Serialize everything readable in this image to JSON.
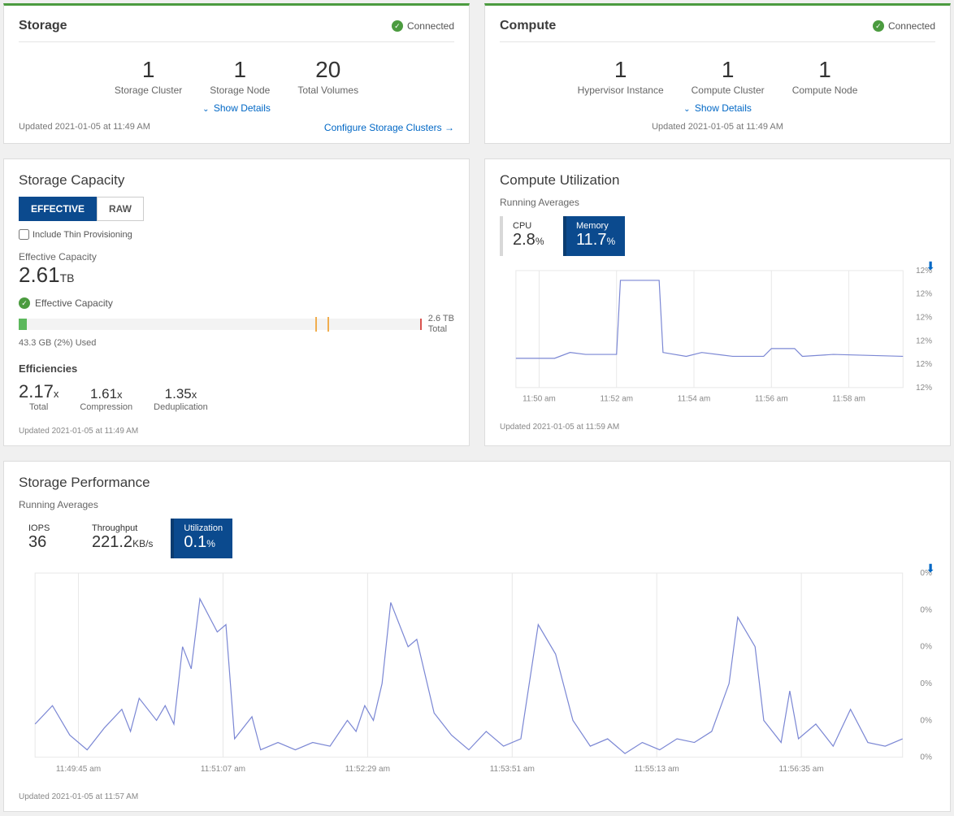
{
  "storage_card": {
    "title": "Storage",
    "status": "Connected",
    "metrics": [
      {
        "value": "1",
        "label": "Storage Cluster"
      },
      {
        "value": "1",
        "label": "Storage Node"
      },
      {
        "value": "20",
        "label": "Total Volumes"
      }
    ],
    "show_details": "Show Details",
    "updated": "Updated 2021-01-05 at 11:49 AM",
    "configure_link": "Configure Storage Clusters →"
  },
  "compute_card": {
    "title": "Compute",
    "status": "Connected",
    "metrics": [
      {
        "value": "1",
        "label": "Hypervisor Instance"
      },
      {
        "value": "1",
        "label": "Compute Cluster"
      },
      {
        "value": "1",
        "label": "Compute Node"
      }
    ],
    "show_details": "Show Details",
    "updated": "Updated 2021-01-05 at 11:49 AM"
  },
  "storage_capacity": {
    "title": "Storage Capacity",
    "tabs": {
      "effective": "EFFECTIVE",
      "raw": "RAW"
    },
    "thin_label": "Include Thin Provisioning",
    "capacity_label": "Effective Capacity",
    "capacity_value": "2.61",
    "capacity_unit": "TB",
    "bar": {
      "label": "Effective Capacity",
      "fill_pct": 2,
      "mark1_pct": 74,
      "mark2_pct": 77,
      "fill_color": "#5cb85c",
      "mark_color": "#f0ad4e",
      "end_color": "#d9534f",
      "bg_color": "#f3f3f3",
      "total_top": "2.6 TB",
      "total_bottom": "Total",
      "used_text": "43.3 GB (2%) Used"
    },
    "eff_title": "Efficiencies",
    "efficiencies": [
      {
        "value": "2.17",
        "label": "Total",
        "big": true
      },
      {
        "value": "1.61",
        "label": "Compression"
      },
      {
        "value": "1.35",
        "label": "Deduplication"
      }
    ],
    "updated": "Updated 2021-01-05 at 11:49 AM"
  },
  "compute_util": {
    "title": "Compute Utilization",
    "subheading": "Running Averages",
    "stats": {
      "cpu": {
        "name": "CPU",
        "value": "2.8",
        "unit": "%"
      },
      "memory": {
        "name": "Memory",
        "value": "11.7",
        "unit": "%"
      }
    },
    "chart": {
      "type": "line",
      "line_color": "#7b87d4",
      "grid_color": "#e8e8e8",
      "bg_color": "#ffffff",
      "x_ticks": [
        "11:50 am",
        "11:52 am",
        "11:54 am",
        "11:56 am",
        "11:58 am"
      ],
      "y_ticks": [
        "12%",
        "12%",
        "12%",
        "12%",
        "12%",
        "12%"
      ],
      "ylim": [
        11.5,
        12.1
      ],
      "points": [
        {
          "x": 0,
          "y": 11.65
        },
        {
          "x": 10,
          "y": 11.65
        },
        {
          "x": 14,
          "y": 11.68
        },
        {
          "x": 18,
          "y": 11.67
        },
        {
          "x": 26,
          "y": 11.67
        },
        {
          "x": 27,
          "y": 12.05
        },
        {
          "x": 37,
          "y": 12.05
        },
        {
          "x": 38,
          "y": 11.68
        },
        {
          "x": 44,
          "y": 11.66
        },
        {
          "x": 48,
          "y": 11.68
        },
        {
          "x": 56,
          "y": 11.66
        },
        {
          "x": 64,
          "y": 11.66
        },
        {
          "x": 66,
          "y": 11.7
        },
        {
          "x": 72,
          "y": 11.7
        },
        {
          "x": 74,
          "y": 11.66
        },
        {
          "x": 82,
          "y": 11.67
        },
        {
          "x": 100,
          "y": 11.66
        }
      ]
    },
    "updated": "Updated 2021-01-05 at 11:59 AM"
  },
  "storage_perf": {
    "title": "Storage Performance",
    "subheading": "Running Averages",
    "stats": {
      "iops": {
        "name": "IOPS",
        "value": "36"
      },
      "throughput": {
        "name": "Throughput",
        "value": "221.2",
        "unit": "KB/s"
      },
      "utilization": {
        "name": "Utilization",
        "value": "0.1",
        "unit": "%"
      }
    },
    "chart": {
      "type": "line",
      "line_color": "#7b87d4",
      "grid_color": "#e8e8e8",
      "bg_color": "#ffffff",
      "x_ticks": [
        "11:49:45 am",
        "11:51:07 am",
        "11:52:29 am",
        "11:53:51 am",
        "11:55:13 am",
        "11:56:35 am"
      ],
      "y_ticks": [
        "0%",
        "0%",
        "0%",
        "0%",
        "0%",
        "0%"
      ],
      "ylim": [
        0,
        0.5
      ],
      "points": [
        {
          "x": 0,
          "y": 0.09
        },
        {
          "x": 2,
          "y": 0.14
        },
        {
          "x": 4,
          "y": 0.06
        },
        {
          "x": 6,
          "y": 0.02
        },
        {
          "x": 8,
          "y": 0.08
        },
        {
          "x": 10,
          "y": 0.13
        },
        {
          "x": 11,
          "y": 0.07
        },
        {
          "x": 12,
          "y": 0.16
        },
        {
          "x": 14,
          "y": 0.1
        },
        {
          "x": 15,
          "y": 0.14
        },
        {
          "x": 16,
          "y": 0.09
        },
        {
          "x": 17,
          "y": 0.3
        },
        {
          "x": 18,
          "y": 0.24
        },
        {
          "x": 19,
          "y": 0.43
        },
        {
          "x": 21,
          "y": 0.34
        },
        {
          "x": 22,
          "y": 0.36
        },
        {
          "x": 23,
          "y": 0.05
        },
        {
          "x": 25,
          "y": 0.11
        },
        {
          "x": 26,
          "y": 0.02
        },
        {
          "x": 28,
          "y": 0.04
        },
        {
          "x": 30,
          "y": 0.02
        },
        {
          "x": 32,
          "y": 0.04
        },
        {
          "x": 34,
          "y": 0.03
        },
        {
          "x": 36,
          "y": 0.1
        },
        {
          "x": 37,
          "y": 0.07
        },
        {
          "x": 38,
          "y": 0.14
        },
        {
          "x": 39,
          "y": 0.1
        },
        {
          "x": 40,
          "y": 0.2
        },
        {
          "x": 41,
          "y": 0.42
        },
        {
          "x": 43,
          "y": 0.3
        },
        {
          "x": 44,
          "y": 0.32
        },
        {
          "x": 46,
          "y": 0.12
        },
        {
          "x": 48,
          "y": 0.06
        },
        {
          "x": 50,
          "y": 0.02
        },
        {
          "x": 52,
          "y": 0.07
        },
        {
          "x": 54,
          "y": 0.03
        },
        {
          "x": 56,
          "y": 0.05
        },
        {
          "x": 58,
          "y": 0.36
        },
        {
          "x": 60,
          "y": 0.28
        },
        {
          "x": 62,
          "y": 0.1
        },
        {
          "x": 64,
          "y": 0.03
        },
        {
          "x": 66,
          "y": 0.05
        },
        {
          "x": 68,
          "y": 0.01
        },
        {
          "x": 70,
          "y": 0.04
        },
        {
          "x": 72,
          "y": 0.02
        },
        {
          "x": 74,
          "y": 0.05
        },
        {
          "x": 76,
          "y": 0.04
        },
        {
          "x": 78,
          "y": 0.07
        },
        {
          "x": 80,
          "y": 0.2
        },
        {
          "x": 81,
          "y": 0.38
        },
        {
          "x": 83,
          "y": 0.3
        },
        {
          "x": 84,
          "y": 0.1
        },
        {
          "x": 86,
          "y": 0.04
        },
        {
          "x": 87,
          "y": 0.18
        },
        {
          "x": 88,
          "y": 0.05
        },
        {
          "x": 90,
          "y": 0.09
        },
        {
          "x": 92,
          "y": 0.03
        },
        {
          "x": 94,
          "y": 0.13
        },
        {
          "x": 96,
          "y": 0.04
        },
        {
          "x": 98,
          "y": 0.03
        },
        {
          "x": 100,
          "y": 0.05
        }
      ]
    },
    "updated": "Updated 2021-01-05 at 11:57 AM"
  },
  "colors": {
    "accent_blue": "#0b4a8e",
    "link_blue": "#0067c5",
    "green": "#4b9b3f"
  }
}
